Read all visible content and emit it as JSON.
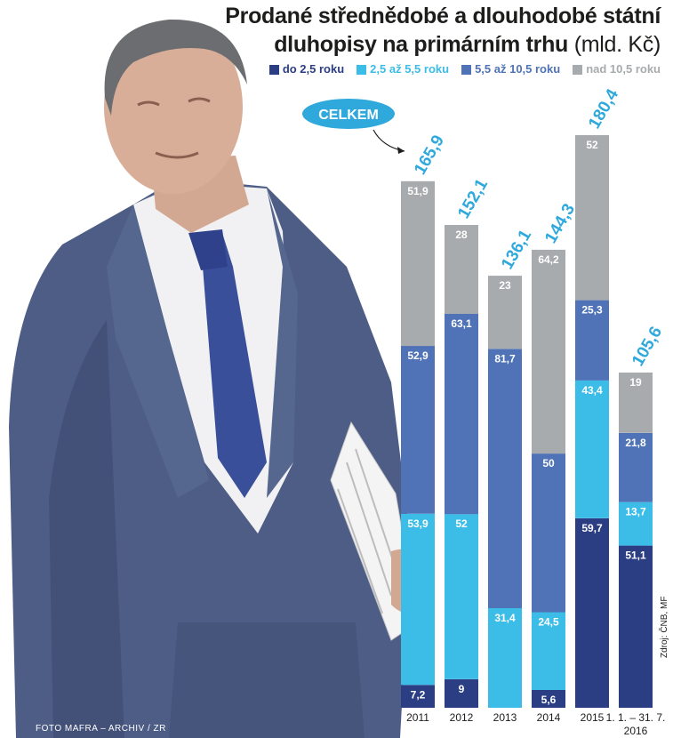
{
  "header": {
    "title": "Prodané střednědobé a dlouhodobé státní dluhopisy na primárním trhu",
    "unit": "(mld. Kč)"
  },
  "photo": {
    "credit": "FOTO MAFRA – ARCHIV / ZR"
  },
  "source": "Zdroj: ČNB, MF",
  "callout": {
    "label": "CELKEM"
  },
  "colors": {
    "s1": "#2c3e83",
    "s2": "#3bbde8",
    "s3": "#4f73b6",
    "s4": "#a7abad",
    "total": "#2fa9dc"
  },
  "chart_data": {
    "type": "bar",
    "stacked": true,
    "categories": [
      "2011",
      "2012",
      "2013",
      "2014",
      "2015",
      "1. 1. – 31. 7. 2016"
    ],
    "series": [
      {
        "name": "do 2,5 roku",
        "values": [
          7.2,
          9,
          0,
          5.6,
          59.7,
          51.1
        ],
        "labels": [
          "7,2",
          "9",
          "",
          "5,6",
          "59,7",
          "51,1"
        ]
      },
      {
        "name": "2,5 až 5,5 roku",
        "values": [
          53.9,
          52,
          31.4,
          24.5,
          43.4,
          13.7
        ],
        "labels": [
          "53,9",
          "52",
          "31,4",
          "24,5",
          "43,4",
          "13,7"
        ]
      },
      {
        "name": "5,5 až 10,5 roku",
        "values": [
          52.9,
          63.1,
          81.7,
          50,
          25.3,
          21.8
        ],
        "labels": [
          "52,9",
          "63,1",
          "81,7",
          "50",
          "25,3",
          "21,8"
        ]
      },
      {
        "name": "nad 10,5 roku",
        "values": [
          51.9,
          28,
          23,
          64.2,
          52,
          19
        ],
        "labels": [
          "51,9",
          "28",
          "23",
          "64,2",
          "52",
          "19"
        ]
      }
    ],
    "totals": [
      165.9,
      152.1,
      136.1,
      144.3,
      180.4,
      105.6
    ],
    "total_labels": [
      "165,9",
      "152,1",
      "136,1",
      "144,3",
      "180,4",
      "105,6"
    ],
    "xlabel": "",
    "ylabel": "",
    "ylim": [
      0,
      180.4
    ],
    "grid": false,
    "legend_position": "top-right"
  }
}
